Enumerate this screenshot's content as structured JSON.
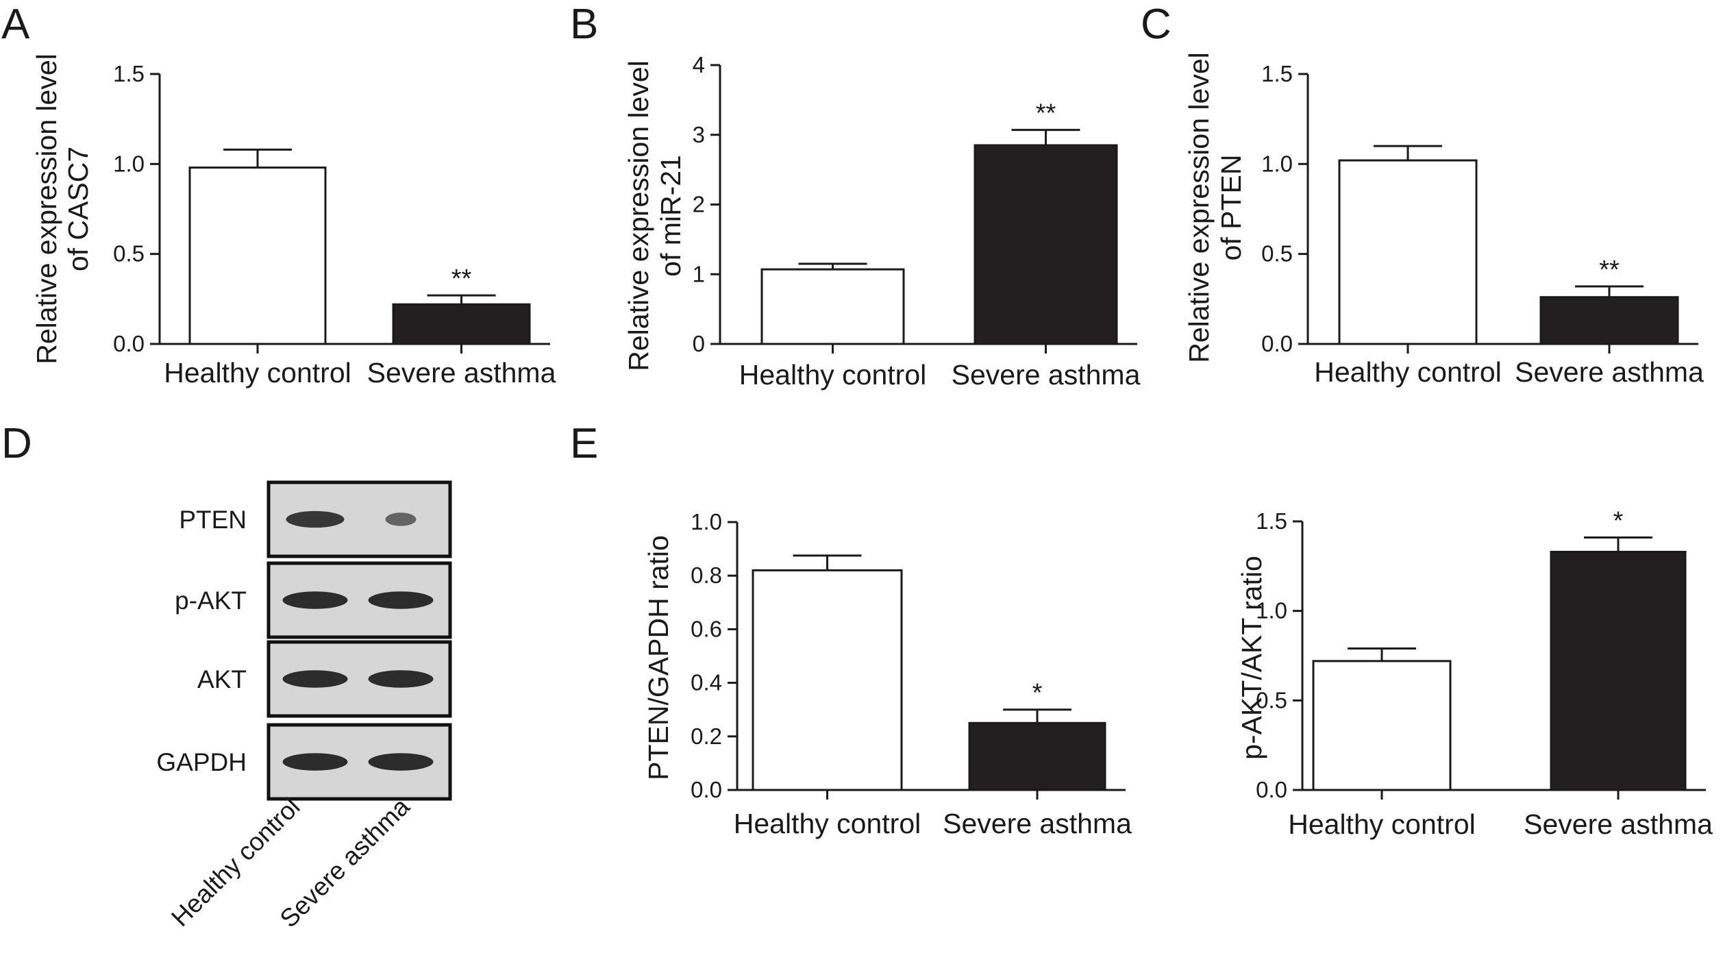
{
  "colors": {
    "axis": "#1a1a1a",
    "bar_control": "#ffffff",
    "bar_asthma": "#231f20",
    "blot_background": "#d6d6d6",
    "blot_band": "#262626"
  },
  "panels": {
    "A": "A",
    "B": "B",
    "C": "C",
    "D": "D",
    "E": "E"
  },
  "chart_data": [
    {
      "id": "A",
      "type": "bar",
      "categories": [
        "Healthy control",
        "Severe asthma"
      ],
      "values": [
        0.98,
        0.22
      ],
      "errors": [
        0.1,
        0.05
      ],
      "significance": [
        "",
        "**"
      ],
      "ylabel": [
        "Relative expression level",
        "of CASC7"
      ],
      "ylim": [
        0,
        1.5
      ],
      "yticks": [
        "0.0",
        "0.5",
        "1.0",
        "1.5"
      ]
    },
    {
      "id": "B",
      "type": "bar",
      "categories": [
        "Healthy control",
        "Severe asthma"
      ],
      "values": [
        1.07,
        2.85
      ],
      "errors": [
        0.08,
        0.22
      ],
      "significance": [
        "",
        "**"
      ],
      "ylabel": [
        "Relative expression level",
        "of miR-21"
      ],
      "ylim": [
        0,
        4
      ],
      "yticks": [
        "0",
        "1",
        "2",
        "3",
        "4"
      ]
    },
    {
      "id": "C",
      "type": "bar",
      "categories": [
        "Healthy control",
        "Severe asthma"
      ],
      "values": [
        1.02,
        0.26
      ],
      "errors": [
        0.08,
        0.06
      ],
      "significance": [
        "",
        "**"
      ],
      "ylabel": [
        "Relative expression level",
        "of PTEN"
      ],
      "ylim": [
        0,
        1.5
      ],
      "yticks": [
        "0.0",
        "0.5",
        "1.0",
        "1.5"
      ]
    },
    {
      "id": "E1",
      "type": "bar",
      "categories": [
        "Healthy control",
        "Severe asthma"
      ],
      "values": [
        0.82,
        0.25
      ],
      "errors": [
        0.055,
        0.05
      ],
      "significance": [
        "",
        "*"
      ],
      "ylabel": [
        "PTEN/GAPDH ratio"
      ],
      "ylim": [
        0,
        1.0
      ],
      "yticks": [
        "0.0",
        "0.2",
        "0.4",
        "0.6",
        "0.8",
        "1.0"
      ]
    },
    {
      "id": "E2",
      "type": "bar",
      "categories": [
        "Healthy control",
        "Severe asthma"
      ],
      "values": [
        0.72,
        1.33
      ],
      "errors": [
        0.07,
        0.08
      ],
      "significance": [
        "",
        "*"
      ],
      "ylabel": [
        "p-AKT/AKT ratio"
      ],
      "ylim": [
        0,
        1.5
      ],
      "yticks": [
        "0.0",
        "0.5",
        "1.0",
        "1.5"
      ]
    }
  ],
  "blot": {
    "rows": [
      {
        "label": "PTEN",
        "bands": [
          0.85,
          0.45
        ]
      },
      {
        "label": "p-AKT",
        "bands": [
          0.95,
          0.95
        ]
      },
      {
        "label": "AKT",
        "bands": [
          0.95,
          0.95
        ]
      },
      {
        "label": "GAPDH",
        "bands": [
          0.95,
          0.95
        ]
      }
    ],
    "lanes": [
      "Healthy control",
      "Severe asthma"
    ]
  }
}
